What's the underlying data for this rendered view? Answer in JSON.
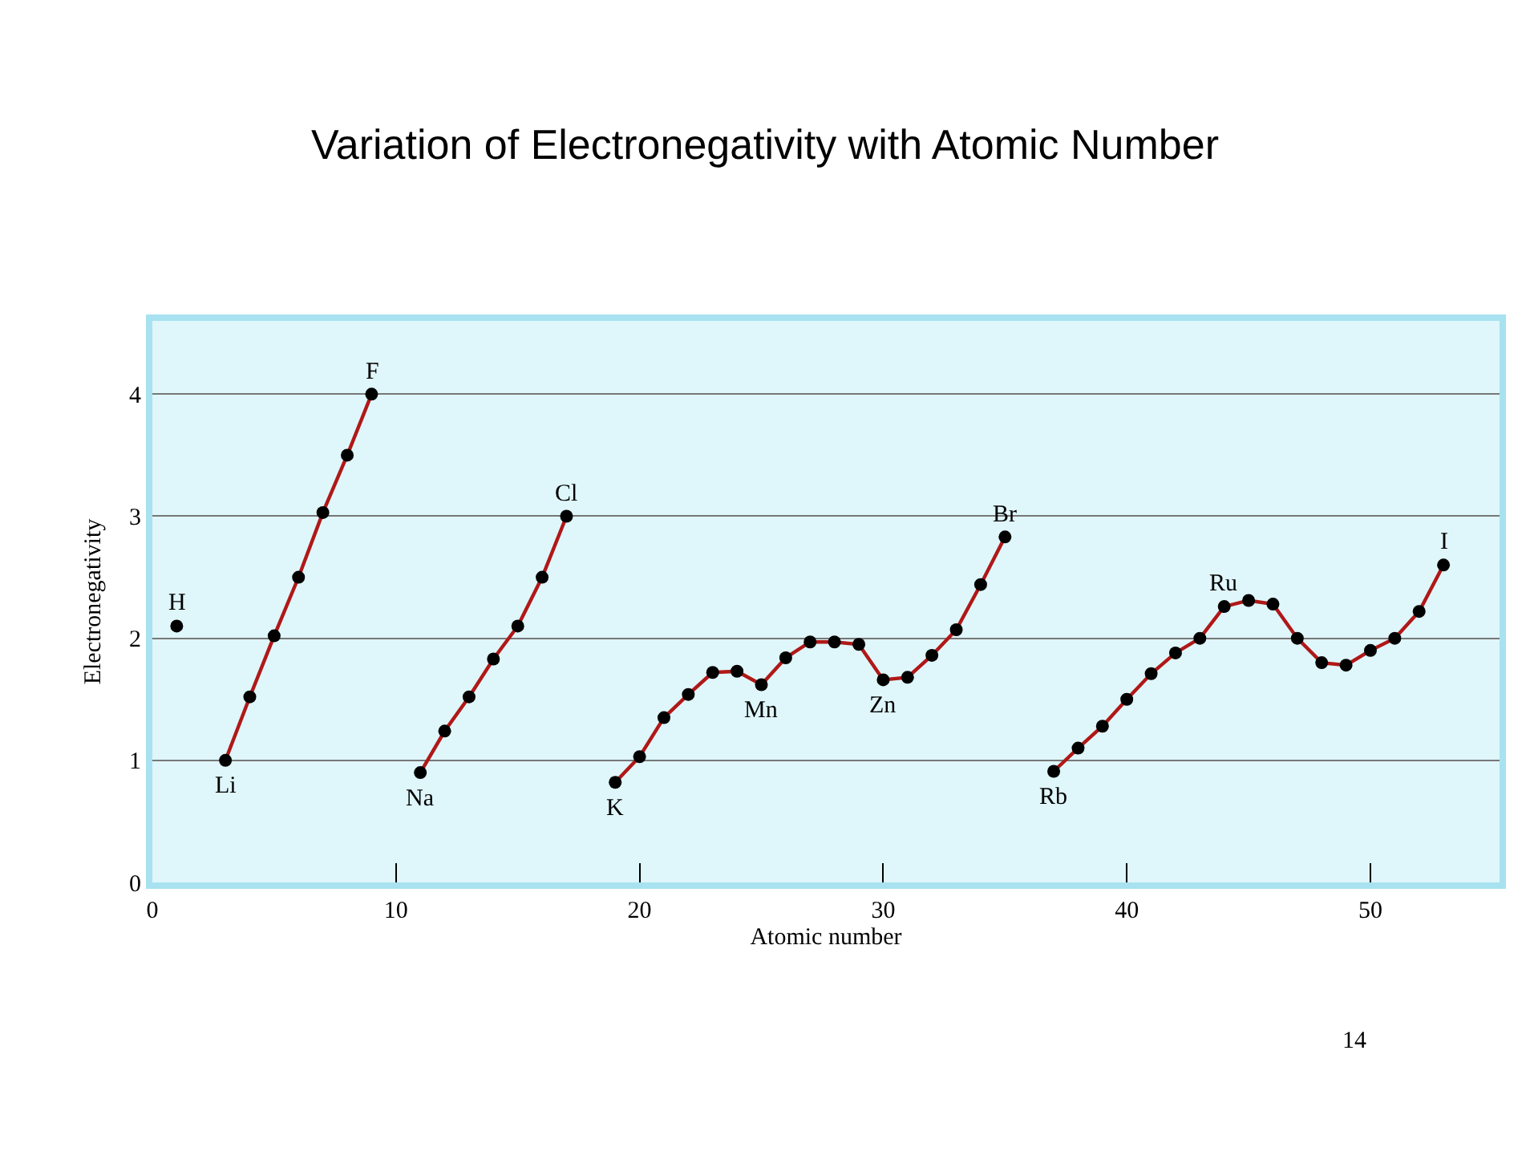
{
  "chart_data": {
    "type": "line",
    "title": "Variation of Electronegativity with Atomic Number",
    "xlabel": "Atomic number",
    "ylabel": "Electronegativity",
    "series": [
      {
        "type": "scatter",
        "color": "#000000",
        "x": [
          1
        ],
        "values": [
          2.1
        ]
      },
      {
        "color": "#b01818",
        "x": [
          3,
          4,
          5,
          6,
          7,
          8,
          9
        ],
        "values": [
          1.0,
          1.52,
          2.02,
          2.5,
          3.03,
          3.5,
          4.0
        ]
      },
      {
        "color": "#b01818",
        "x": [
          11,
          12,
          13,
          14,
          15,
          16,
          17
        ],
        "values": [
          0.9,
          1.24,
          1.52,
          1.83,
          2.1,
          2.5,
          3.0
        ]
      },
      {
        "color": "#b01818",
        "x": [
          19,
          20,
          21,
          22,
          23,
          24,
          25,
          26,
          27,
          28,
          29,
          30,
          31,
          32,
          33,
          34,
          35
        ],
        "values": [
          0.82,
          1.03,
          1.35,
          1.54,
          1.72,
          1.73,
          1.62,
          1.84,
          1.97,
          1.97,
          1.95,
          1.66,
          1.68,
          1.86,
          2.07,
          2.44,
          2.83
        ]
      },
      {
        "color": "#b01818",
        "x": [
          37,
          38,
          39,
          40,
          41,
          42,
          43,
          44,
          45,
          46,
          47,
          48,
          49,
          50,
          51,
          52,
          53
        ],
        "values": [
          0.91,
          1.1,
          1.28,
          1.5,
          1.71,
          1.88,
          2.0,
          2.26,
          2.31,
          2.28,
          2.0,
          1.8,
          1.78,
          1.9,
          2.0,
          2.22,
          2.6
        ]
      }
    ],
    "annotations": [
      {
        "text": "H",
        "x": 1,
        "y": 2.1
      },
      {
        "text": "Li",
        "x": 3,
        "y": 1.0
      },
      {
        "text": "F",
        "x": 9,
        "y": 4.0
      },
      {
        "text": "Na",
        "x": 11,
        "y": 0.9
      },
      {
        "text": "Cl",
        "x": 17,
        "y": 3.0
      },
      {
        "text": "K",
        "x": 19,
        "y": 0.82
      },
      {
        "text": "Mn",
        "x": 25,
        "y": 1.62
      },
      {
        "text": "Zn",
        "x": 30,
        "y": 1.66
      },
      {
        "text": "Br",
        "x": 35,
        "y": 2.83
      },
      {
        "text": "Rb",
        "x": 37,
        "y": 0.91
      },
      {
        "text": "Ru",
        "x": 44,
        "y": 2.26
      },
      {
        "text": "I",
        "x": 53,
        "y": 2.6
      },
      "14"
    ],
    "xlim": [
      0,
      55.3
    ],
    "ylim": [
      0,
      4.6
    ],
    "xticks": [
      0,
      10,
      20,
      30,
      40,
      50
    ],
    "yticks": [
      0,
      1,
      2,
      3,
      4
    ],
    "grid": "y",
    "marker": "circle"
  }
}
